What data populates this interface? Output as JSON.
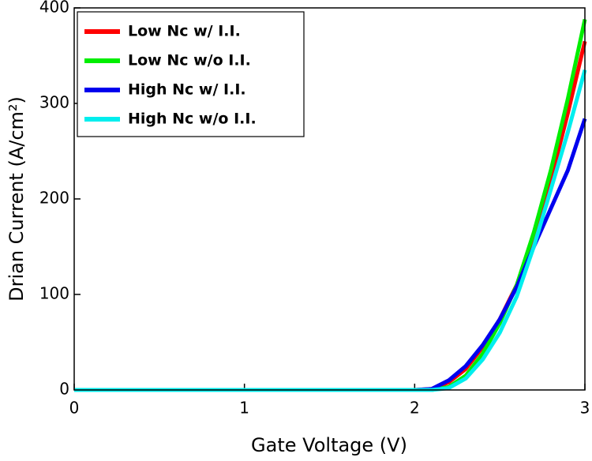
{
  "chart_data": {
    "type": "line",
    "xlabel": "Gate Voltage (V)",
    "ylabel": "Drian Current (A/cm²)",
    "x": [
      0,
      1,
      1.5,
      2,
      2.1,
      2.2,
      2.3,
      2.4,
      2.5,
      2.6,
      2.7,
      2.8,
      2.9,
      3
    ],
    "series": [
      {
        "name": "Low Nc w/ I.I.",
        "color": "#ff0000",
        "values": [
          0,
          0,
          0,
          0,
          1,
          8,
          22,
          45,
          74,
          110,
          160,
          220,
          290,
          365
        ]
      },
      {
        "name": "Low Nc w/o I.I.",
        "color": "#00ee00",
        "values": [
          0,
          0,
          0,
          0,
          0,
          3,
          15,
          38,
          70,
          110,
          165,
          230,
          305,
          388
        ]
      },
      {
        "name": "High Nc w/ I.I.",
        "color": "#0000ee",
        "values": [
          0,
          0,
          0,
          0,
          1,
          10,
          25,
          47,
          74,
          108,
          150,
          190,
          230,
          284
        ]
      },
      {
        "name": "High Nc w/o I.I.",
        "color": "#00eeee",
        "values": [
          0,
          0,
          0,
          0,
          0,
          2,
          12,
          32,
          60,
          98,
          150,
          210,
          270,
          335
        ]
      }
    ],
    "xlim": [
      0,
      3
    ],
    "xticks": [
      0,
      1,
      2,
      3
    ],
    "ylim": [
      0,
      400
    ],
    "yticks": [
      0,
      100,
      200,
      300,
      400
    ],
    "legend": "upper left"
  }
}
